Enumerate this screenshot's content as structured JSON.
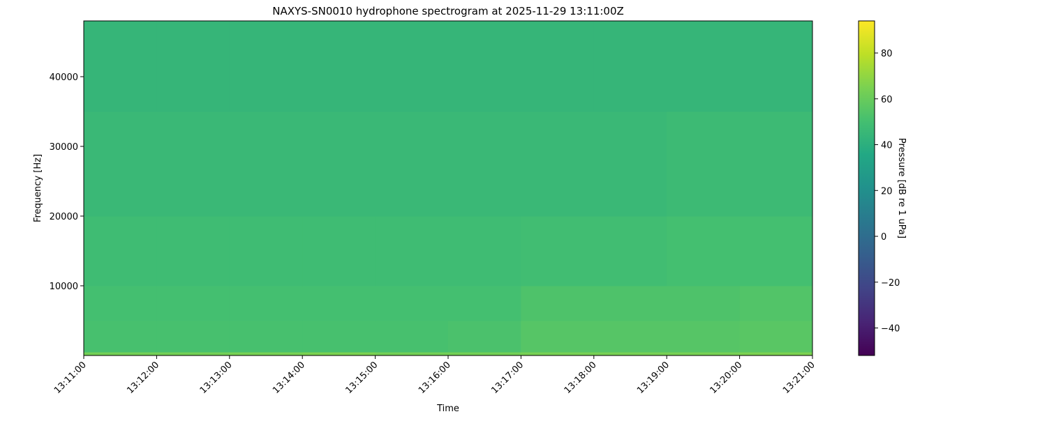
{
  "chart_data": {
    "type": "heatmap",
    "title": "NAXYS-SN0010 hydrophone spectrogram at 2025-11-29 13:11:00Z",
    "xlabel": "Time",
    "ylabel": "Frequency [Hz]",
    "colorbar_label": "Pressure [dB re 1 uPa]",
    "colormap": "viridis",
    "x_ticks": [
      "13:11:00",
      "13:12:00",
      "13:13:00",
      "13:14:00",
      "13:15:00",
      "13:16:00",
      "13:17:00",
      "13:18:00",
      "13:19:00",
      "13:20:00",
      "13:21:00"
    ],
    "y_ticks": [
      10000,
      20000,
      30000,
      40000
    ],
    "ylim": [
      0,
      48000
    ],
    "colorbar_ticks": [
      -40,
      -20,
      0,
      20,
      40,
      60,
      80
    ],
    "clim": [
      -52,
      94
    ],
    "time_bins": [
      "13:11",
      "13:12",
      "13:13",
      "13:14",
      "13:15",
      "13:16",
      "13:17",
      "13:18",
      "13:19",
      "13:20"
    ],
    "freq_bands": [
      [
        0,
        500
      ],
      [
        500,
        5000
      ],
      [
        5000,
        10000
      ],
      [
        10000,
        20000
      ],
      [
        20000,
        35000
      ],
      [
        35000,
        48000
      ]
    ],
    "values_db": [
      [
        63,
        63,
        64,
        65,
        63,
        63,
        64,
        64,
        64,
        65
      ],
      [
        51,
        51,
        51,
        51,
        51,
        52,
        55,
        55,
        55,
        56
      ],
      [
        50,
        50,
        50,
        50,
        50,
        50,
        53,
        53,
        53,
        54
      ],
      [
        48,
        48,
        48,
        48,
        48,
        48,
        49,
        49,
        50,
        50
      ],
      [
        46,
        46,
        46,
        46,
        46,
        46,
        46,
        46,
        47,
        47
      ],
      [
        44,
        44,
        44,
        44,
        44,
        44,
        44,
        44,
        44,
        44
      ]
    ]
  }
}
